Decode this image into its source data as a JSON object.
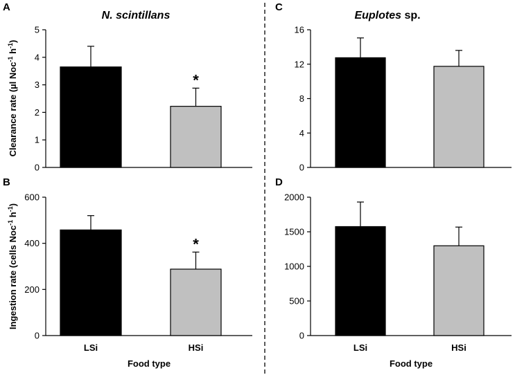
{
  "column_titles": {
    "left": {
      "italic": "N. scintillans",
      "normal": ""
    },
    "right": {
      "italic": "Euplotes",
      "normal": " sp."
    }
  },
  "xlabel": "Food type",
  "bar_colors": [
    "#000000",
    "#c0c0c0"
  ],
  "chart_data": [
    {
      "panel": "A",
      "type": "bar",
      "categories": [
        "LSi",
        "HSi"
      ],
      "values": [
        3.65,
        2.22
      ],
      "errors": [
        0.75,
        0.66
      ],
      "significance": [
        "",
        "*"
      ],
      "ylabel_parts": [
        "Clearance rate (µl Noc",
        "-1",
        " h",
        "-1",
        ")"
      ],
      "ylim": [
        0,
        5
      ],
      "ticks": [
        0,
        1,
        2,
        3,
        4,
        5
      ],
      "xlabel": ""
    },
    {
      "panel": "B",
      "type": "bar",
      "categories": [
        "LSi",
        "HSi"
      ],
      "values": [
        458,
        288
      ],
      "errors": [
        62,
        74
      ],
      "significance": [
        "",
        "*"
      ],
      "ylabel_parts": [
        "Ingestion rate (cells Noc",
        "-1",
        " h",
        "-1",
        ")"
      ],
      "ylim": [
        0,
        600
      ],
      "ticks": [
        0,
        200,
        400,
        600
      ],
      "xlabel": "Food type"
    },
    {
      "panel": "C",
      "type": "bar",
      "categories": [
        "LSi",
        "HSi"
      ],
      "values": [
        12.75,
        11.75
      ],
      "errors": [
        2.3,
        1.85
      ],
      "significance": [
        "",
        ""
      ],
      "ylabel_parts": [],
      "ylim": [
        0,
        16
      ],
      "ticks": [
        0,
        4,
        8,
        12,
        16
      ],
      "xlabel": ""
    },
    {
      "panel": "D",
      "type": "bar",
      "categories": [
        "LSi",
        "HSi"
      ],
      "values": [
        1575,
        1298
      ],
      "errors": [
        355,
        270
      ],
      "significance": [
        "",
        ""
      ],
      "ylabel_parts": [],
      "ylim": [
        0,
        2000
      ],
      "ticks": [
        0,
        500,
        1000,
        1500,
        2000
      ],
      "xlabel": "Food type"
    }
  ]
}
